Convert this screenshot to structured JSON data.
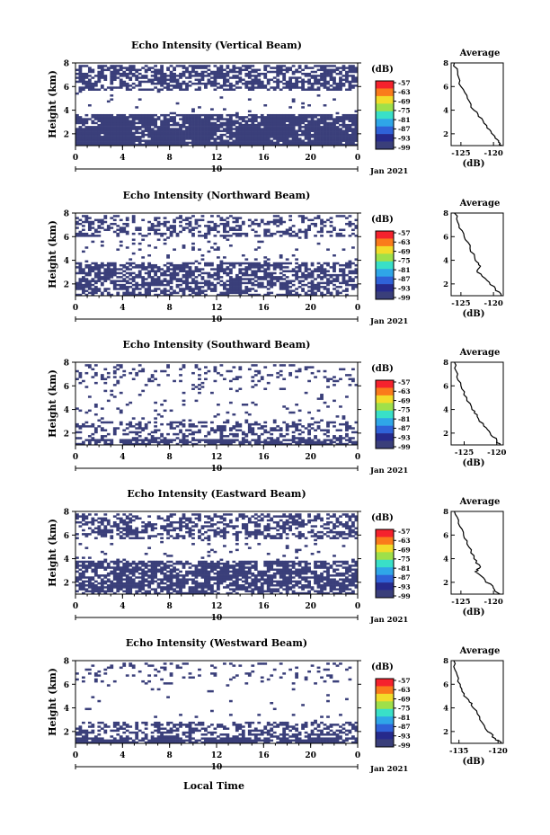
{
  "figure": {
    "xlabel": "Local Time",
    "date_label": "Jan 2021",
    "date_tick": "10",
    "colorbar_unit": "(dB)",
    "colorbar_ticks": [
      "-57",
      "-63",
      "-69",
      "-75",
      "-81",
      "-87",
      "-93",
      "-99"
    ],
    "colormap": [
      "#f5222d",
      "#fa7b1b",
      "#f2dc2a",
      "#9fe04a",
      "#39e0c8",
      "#2fa6e8",
      "#2f62d8",
      "#262a8c",
      "#3a3f7a"
    ],
    "echo_color": "#3a3f7a"
  },
  "chart_data": [
    {
      "type": "heatmap",
      "title": "Echo Intensity (Vertical Beam)",
      "ylabel": "Height (km)",
      "xlim": [
        0,
        24
      ],
      "ylim": [
        1,
        8
      ],
      "xticks": [
        "0",
        "4",
        "8",
        "12",
        "16",
        "20",
        "0"
      ],
      "yticks": [
        "2",
        "4",
        "6",
        "8"
      ],
      "bands": [
        {
          "from": 1.0,
          "to": 2.3,
          "density": 0.92
        },
        {
          "from": 2.3,
          "to": 3.7,
          "density": 0.82
        },
        {
          "from": 3.7,
          "to": 5.6,
          "density": 0.03
        },
        {
          "from": 5.6,
          "to": 7.9,
          "density": 0.6
        }
      ],
      "profile": {
        "title": "Average",
        "xlabel": "(dB)",
        "xticks": [
          "-125",
          "-120"
        ],
        "yticks": [
          "2",
          "4",
          "6",
          "8"
        ],
        "xlim": [
          -126.5,
          -118.5
        ],
        "ylim": [
          1,
          8
        ],
        "x": [
          -126.0,
          -125.5,
          -125.0,
          -124.0,
          -123.0,
          -121.8,
          -121.0,
          -120.0,
          -119.2,
          -118.7
        ],
        "y": [
          8.0,
          7.0,
          6.0,
          5.0,
          4.0,
          3.3,
          2.5,
          1.9,
          1.4,
          1.0
        ]
      }
    },
    {
      "type": "heatmap",
      "title": "Echo Intensity (Northward Beam)",
      "ylabel": "Height (km)",
      "xlim": [
        0,
        24
      ],
      "ylim": [
        1,
        8
      ],
      "xticks": [
        "0",
        "4",
        "8",
        "12",
        "16",
        "20",
        "0"
      ],
      "yticks": [
        "2",
        "4",
        "6",
        "8"
      ],
      "bands": [
        {
          "from": 1.0,
          "to": 2.0,
          "density": 0.55
        },
        {
          "from": 2.0,
          "to": 3.8,
          "density": 0.6
        },
        {
          "from": 3.8,
          "to": 6.0,
          "density": 0.06
        },
        {
          "from": 6.0,
          "to": 7.9,
          "density": 0.35
        }
      ],
      "profile": {
        "title": "Average",
        "xlabel": "(dB)",
        "xticks": [
          "-125",
          "-120"
        ],
        "yticks": [
          "2",
          "4",
          "6",
          "8"
        ],
        "xlim": [
          -126.5,
          -118.5
        ],
        "ylim": [
          1,
          8
        ],
        "x": [
          -126.0,
          -125.3,
          -124.5,
          -123.6,
          -122.8,
          -122.0,
          -122.5,
          -121.0,
          -119.7,
          -118.8
        ],
        "y": [
          8.0,
          7.0,
          6.0,
          5.0,
          4.0,
          3.5,
          3.0,
          2.3,
          1.6,
          1.0
        ]
      }
    },
    {
      "type": "heatmap",
      "title": "Echo Intensity (Southward Beam)",
      "ylabel": "Height (km)",
      "xlim": [
        0,
        24
      ],
      "ylim": [
        1,
        8
      ],
      "xticks": [
        "0",
        "4",
        "8",
        "12",
        "16",
        "20",
        "0"
      ],
      "yticks": [
        "2",
        "4",
        "6",
        "8"
      ],
      "bands": [
        {
          "from": 1.0,
          "to": 1.5,
          "density": 0.75
        },
        {
          "from": 1.5,
          "to": 3.0,
          "density": 0.35
        },
        {
          "from": 3.0,
          "to": 6.3,
          "density": 0.05
        },
        {
          "from": 6.3,
          "to": 7.9,
          "density": 0.18
        }
      ],
      "profile": {
        "title": "Average",
        "xlabel": "(dB)",
        "xticks": [
          "-125",
          "-120"
        ],
        "yticks": [
          "2",
          "4",
          "6",
          "8"
        ],
        "xlim": [
          -127,
          -119
        ],
        "ylim": [
          1,
          8
        ],
        "x": [
          -126.5,
          -126.0,
          -125.5,
          -124.6,
          -123.8,
          -123.0,
          -122.0,
          -121.0,
          -120.0,
          -119.5
        ],
        "y": [
          8.0,
          7.0,
          6.0,
          5.0,
          4.0,
          3.4,
          2.6,
          2.0,
          1.4,
          1.0
        ]
      }
    },
    {
      "type": "heatmap",
      "title": "Echo Intensity (Eastward Beam)",
      "ylabel": "Height (km)",
      "xlim": [
        0,
        24
      ],
      "ylim": [
        1,
        8
      ],
      "xticks": [
        "0",
        "4",
        "8",
        "12",
        "16",
        "20",
        "0"
      ],
      "yticks": [
        "2",
        "4",
        "6",
        "8"
      ],
      "bands": [
        {
          "from": 1.0,
          "to": 1.5,
          "density": 0.6
        },
        {
          "from": 1.5,
          "to": 3.8,
          "density": 0.72
        },
        {
          "from": 3.8,
          "to": 5.6,
          "density": 0.04
        },
        {
          "from": 5.6,
          "to": 7.9,
          "density": 0.45
        }
      ],
      "profile": {
        "title": "Average",
        "xlabel": "(dB)",
        "xticks": [
          "-125",
          "-120"
        ],
        "yticks": [
          "2",
          "4",
          "6",
          "8"
        ],
        "xlim": [
          -126.5,
          -118.5
        ],
        "ylim": [
          1,
          8
        ],
        "x": [
          -126.0,
          -125.4,
          -124.6,
          -123.8,
          -123.0,
          -122.0,
          -122.8,
          -121.3,
          -120.0,
          -119.0
        ],
        "y": [
          8.0,
          7.0,
          6.0,
          5.0,
          4.0,
          3.3,
          2.9,
          2.2,
          1.5,
          1.0
        ]
      }
    },
    {
      "type": "heatmap",
      "title": "Echo Intensity (Westward Beam)",
      "ylabel": "Height (km)",
      "xlim": [
        0,
        24
      ],
      "ylim": [
        1,
        8
      ],
      "xticks": [
        "0",
        "4",
        "8",
        "12",
        "16",
        "20",
        "0"
      ],
      "yticks": [
        "2",
        "4",
        "6",
        "8"
      ],
      "bands": [
        {
          "from": 1.0,
          "to": 1.5,
          "density": 0.8
        },
        {
          "from": 1.5,
          "to": 2.8,
          "density": 0.4
        },
        {
          "from": 2.8,
          "to": 6.0,
          "density": 0.02
        },
        {
          "from": 6.0,
          "to": 7.9,
          "density": 0.12
        }
      ],
      "profile": {
        "title": "Average",
        "xlabel": "(dB)",
        "xticks": [
          "-135",
          "-120"
        ],
        "yticks": [
          "2",
          "4",
          "6",
          "8"
        ],
        "xlim": [
          -138,
          -118
        ],
        "ylim": [
          1,
          8
        ],
        "x": [
          -137.0,
          -136.0,
          -134.5,
          -133.0,
          -131.0,
          -129.5,
          -127.0,
          -124.0,
          -121.0,
          -119.0
        ],
        "y": [
          8.0,
          7.0,
          6.0,
          5.2,
          4.5,
          4.0,
          3.0,
          2.0,
          1.4,
          1.0
        ]
      }
    }
  ]
}
